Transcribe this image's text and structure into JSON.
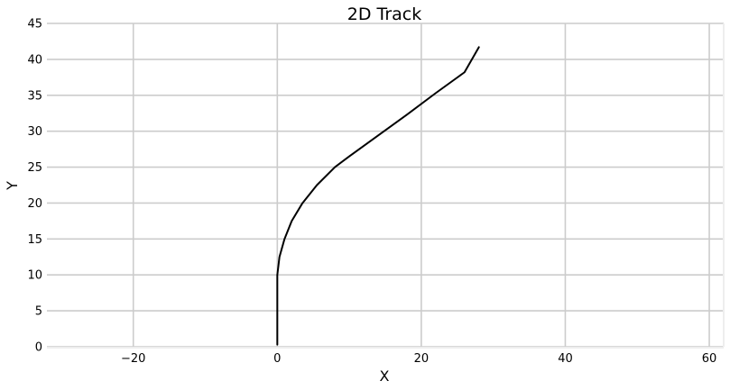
{
  "chart_data": {
    "type": "line",
    "title": "2D Track",
    "xlabel": "X",
    "ylabel": "Y",
    "xlim": [
      -32,
      62
    ],
    "ylim": [
      0,
      45
    ],
    "xticks": [
      -20,
      0,
      20,
      40,
      60
    ],
    "xtick_labels": [
      "−20",
      "0",
      "20",
      "40",
      "60"
    ],
    "yticks": [
      0,
      5,
      10,
      15,
      20,
      25,
      30,
      35,
      40,
      45
    ],
    "ytick_labels": [
      "0",
      "5",
      "10",
      "15",
      "20",
      "25",
      "30",
      "35",
      "40",
      "45"
    ],
    "grid": true,
    "series": [
      {
        "color": "#000000",
        "x": [
          0,
          0,
          0,
          0.3,
          1.0,
          2.0,
          3.5,
          5.5,
          8.0,
          10.0,
          14.0,
          18.0,
          22.0,
          26.0,
          28.0
        ],
        "y": [
          0.3,
          5,
          10,
          12.5,
          15,
          17.5,
          20,
          22.5,
          25,
          26.5,
          29.4,
          32.3,
          35.3,
          38.2,
          41.7
        ]
      }
    ]
  },
  "colors": {
    "background": "#ffffff",
    "grid": "#cccccc",
    "line": "#000000"
  }
}
